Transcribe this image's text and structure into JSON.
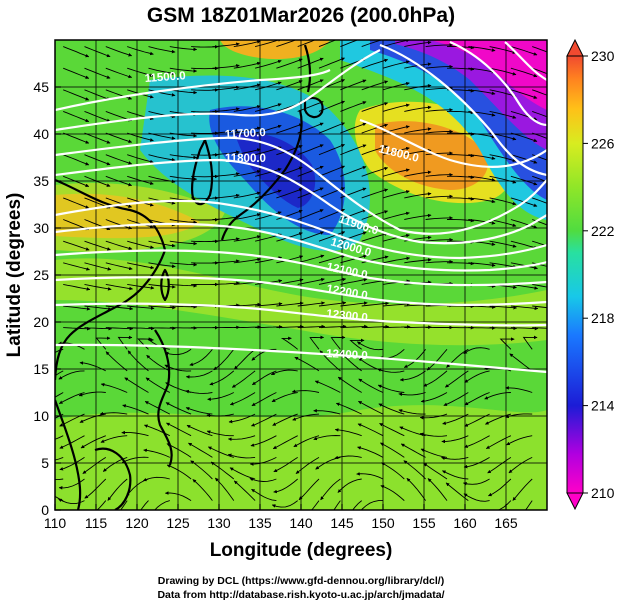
{
  "title": "GSM 18Z01Mar2026 (200.0hPa)",
  "x_axis": {
    "label": "Longitude (degrees)",
    "ticks": [
      "110",
      "115",
      "120",
      "125",
      "130",
      "135",
      "140",
      "145",
      "150",
      "155",
      "160",
      "165"
    ]
  },
  "y_axis": {
    "label": "Latitude  (degrees)",
    "ticks": [
      "0",
      "5",
      "10",
      "15",
      "20",
      "25",
      "30",
      "35",
      "40",
      "45"
    ]
  },
  "colorbar": {
    "ticks": [
      "210",
      "214",
      "218",
      "222",
      "226",
      "230"
    ],
    "colors": [
      "#ff00c8",
      "#b000e0",
      "#1c1cd6",
      "#1a78ff",
      "#18c8e8",
      "#28e0a0",
      "#50dc40",
      "#90e628",
      "#d8ec20",
      "#ffc018",
      "#ff8020",
      "#f04a30"
    ]
  },
  "contour_labels": [
    "11500.0",
    "11700.0",
    "11800.0",
    "11800.0",
    "11900.0",
    "12000.0",
    "12100.0",
    "12200.0",
    "12300.0",
    "12400.0"
  ],
  "credits": {
    "line1": "Drawing by DCL (https://www.gfd-dennou.org/library/dcl/)",
    "line2": "Data from http://database.rish.kyoto-u.ac.jp/arch/jmadata/"
  }
}
